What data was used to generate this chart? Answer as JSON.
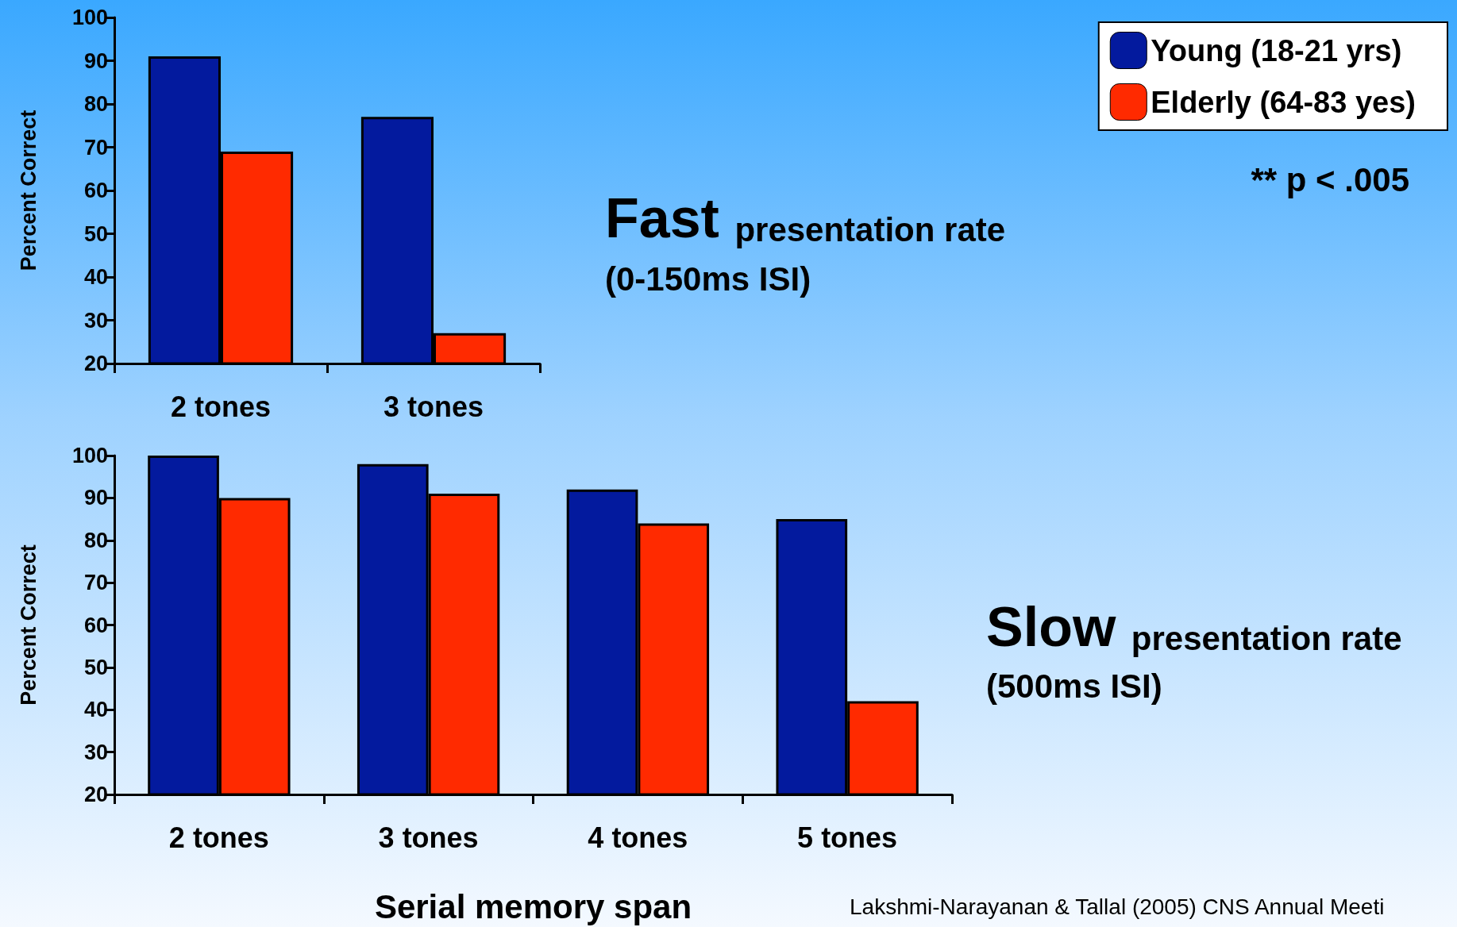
{
  "chart_data": [
    {
      "type": "bar",
      "ylabel": "Percent Correct",
      "categories": [
        "2 tones",
        "3 tones"
      ],
      "series": [
        {
          "name": "Young (18-21 yrs)",
          "color": "#031a9e",
          "values": [
            91,
            77
          ]
        },
        {
          "name": "Elderly (64-83 yes)",
          "color": "#ff2a00",
          "values": [
            69,
            27
          ]
        }
      ],
      "ylim": [
        20,
        100
      ],
      "yticks": [
        20,
        30,
        40,
        50,
        60,
        70,
        80,
        90,
        100
      ],
      "grid": false,
      "legend": "top right",
      "annotations": [
        "Fast presentation rate",
        "(0-150ms ISI)",
        "** p < .005"
      ]
    },
    {
      "type": "bar",
      "ylabel": "Percent Correct",
      "xlabel": "Serial memory span",
      "categories": [
        "2 tones",
        "3 tones",
        "4 tones",
        "5 tones"
      ],
      "series": [
        {
          "color": "#031a9e",
          "values": [
            100,
            98,
            92,
            85
          ]
        },
        {
          "color": "#ff2a00",
          "values": [
            90,
            91,
            84,
            42
          ]
        }
      ],
      "ylim": [
        20,
        100
      ],
      "yticks": [
        20,
        30,
        40,
        50,
        60,
        70,
        80,
        90,
        100
      ],
      "grid": false,
      "legend": false,
      "annotations": [
        "Slow presentation rate",
        "(500ms ISI)",
        "Lakshmi-Narayanan & Tallal (2005) CNS Annual Meeti"
      ]
    }
  ]
}
